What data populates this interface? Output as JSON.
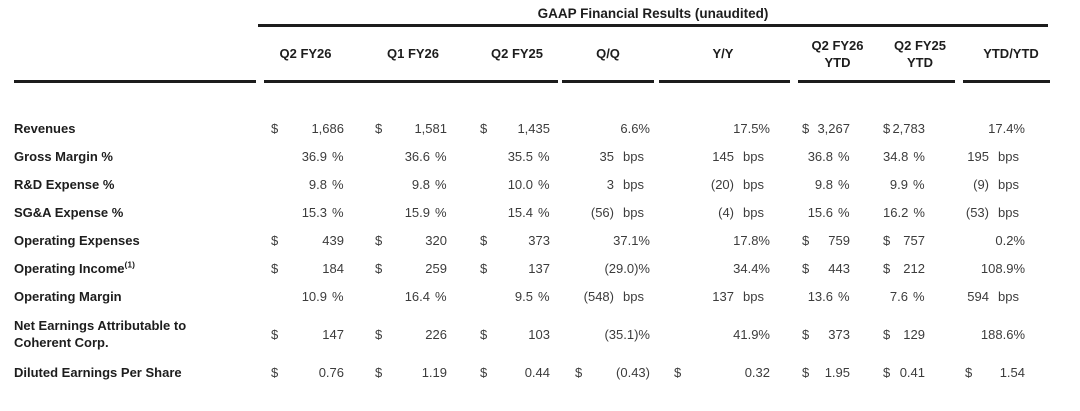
{
  "title": "GAAP Financial Results (unaudited)",
  "columns": [
    {
      "line1": "Q2 FY26",
      "line2": ""
    },
    {
      "line1": "Q1 FY26",
      "line2": ""
    },
    {
      "line1": "Q2 FY25",
      "line2": ""
    },
    {
      "line1": "Q/Q",
      "line2": ""
    },
    {
      "line1": "Y/Y",
      "line2": ""
    },
    {
      "line1": "Q2 FY26",
      "line2": "YTD"
    },
    {
      "line1": "Q2 FY25",
      "line2": "YTD"
    },
    {
      "line1": "YTD/YTD",
      "line2": ""
    }
  ],
  "rows": [
    {
      "label": "Revenues",
      "cells": [
        {
          "p": "$",
          "v": "1,686",
          "u": ""
        },
        {
          "p": "$",
          "v": "1,581",
          "u": ""
        },
        {
          "p": "$",
          "v": "1,435",
          "u": ""
        },
        {
          "p": "",
          "v": "6.6%",
          "u": ""
        },
        {
          "p": "",
          "v": "17.5%",
          "u": ""
        },
        {
          "p": "$",
          "v": "3,267",
          "u": ""
        },
        {
          "p": "$",
          "v": "2,783",
          "u": ""
        },
        {
          "p": "",
          "v": "17.4%",
          "u": ""
        }
      ]
    },
    {
      "label": "Gross Margin %",
      "cells": [
        {
          "p": "",
          "v": "36.9",
          "u": "%"
        },
        {
          "p": "",
          "v": "36.6",
          "u": "%"
        },
        {
          "p": "",
          "v": "35.5",
          "u": "%"
        },
        {
          "p": "",
          "v": "35",
          "u": "bps"
        },
        {
          "p": "",
          "v": "145",
          "u": "bps"
        },
        {
          "p": "",
          "v": "36.8",
          "u": "%"
        },
        {
          "p": "",
          "v": "34.8",
          "u": "%"
        },
        {
          "p": "",
          "v": "195",
          "u": "bps"
        }
      ]
    },
    {
      "label": "R&D Expense %",
      "cells": [
        {
          "p": "",
          "v": "9.8",
          "u": "%"
        },
        {
          "p": "",
          "v": "9.8",
          "u": "%"
        },
        {
          "p": "",
          "v": "10.0",
          "u": "%"
        },
        {
          "p": "",
          "v": "3",
          "u": "bps"
        },
        {
          "p": "",
          "v": "(20)",
          "u": "bps"
        },
        {
          "p": "",
          "v": "9.8",
          "u": "%"
        },
        {
          "p": "",
          "v": "9.9",
          "u": "%"
        },
        {
          "p": "",
          "v": "(9)",
          "u": "bps"
        }
      ]
    },
    {
      "label": "SG&A Expense %",
      "cells": [
        {
          "p": "",
          "v": "15.3",
          "u": "%"
        },
        {
          "p": "",
          "v": "15.9",
          "u": "%"
        },
        {
          "p": "",
          "v": "15.4",
          "u": "%"
        },
        {
          "p": "",
          "v": "(56)",
          "u": "bps"
        },
        {
          "p": "",
          "v": "(4)",
          "u": "bps"
        },
        {
          "p": "",
          "v": "15.6",
          "u": "%"
        },
        {
          "p": "",
          "v": "16.2",
          "u": "%"
        },
        {
          "p": "",
          "v": "(53)",
          "u": "bps"
        }
      ]
    },
    {
      "label": "Operating Expenses",
      "cells": [
        {
          "p": "$",
          "v": "439",
          "u": ""
        },
        {
          "p": "$",
          "v": "320",
          "u": ""
        },
        {
          "p": "$",
          "v": "373",
          "u": ""
        },
        {
          "p": "",
          "v": "37.1%",
          "u": ""
        },
        {
          "p": "",
          "v": "17.8%",
          "u": ""
        },
        {
          "p": "$",
          "v": "759",
          "u": ""
        },
        {
          "p": "$",
          "v": "757",
          "u": ""
        },
        {
          "p": "",
          "v": "0.2%",
          "u": ""
        }
      ]
    },
    {
      "label": "Operating Income",
      "label_sup": "(1)",
      "cells": [
        {
          "p": "$",
          "v": "184",
          "u": ""
        },
        {
          "p": "$",
          "v": "259",
          "u": ""
        },
        {
          "p": "$",
          "v": "137",
          "u": ""
        },
        {
          "p": "",
          "v": "(29.0)%",
          "u": ""
        },
        {
          "p": "",
          "v": "34.4%",
          "u": ""
        },
        {
          "p": "$",
          "v": "443",
          "u": ""
        },
        {
          "p": "$",
          "v": "212",
          "u": ""
        },
        {
          "p": "",
          "v": "108.9%",
          "u": ""
        }
      ]
    },
    {
      "label": "Operating Margin",
      "cells": [
        {
          "p": "",
          "v": "10.9",
          "u": "%"
        },
        {
          "p": "",
          "v": "16.4",
          "u": "%"
        },
        {
          "p": "",
          "v": "9.5",
          "u": "%"
        },
        {
          "p": "",
          "v": "(548)",
          "u": "bps"
        },
        {
          "p": "",
          "v": "137",
          "u": "bps"
        },
        {
          "p": "",
          "v": "13.6",
          "u": "%"
        },
        {
          "p": "",
          "v": "7.6",
          "u": "%"
        },
        {
          "p": "",
          "v": "594",
          "u": "bps"
        }
      ]
    },
    {
      "label": "Net Earnings Attributable to",
      "label2": "Coherent Corp.",
      "tall": true,
      "cells": [
        {
          "p": "$",
          "v": "147",
          "u": ""
        },
        {
          "p": "$",
          "v": "226",
          "u": ""
        },
        {
          "p": "$",
          "v": "103",
          "u": ""
        },
        {
          "p": "",
          "v": "(35.1)%",
          "u": ""
        },
        {
          "p": "",
          "v": "41.9%",
          "u": ""
        },
        {
          "p": "$",
          "v": "373",
          "u": ""
        },
        {
          "p": "$",
          "v": "129",
          "u": ""
        },
        {
          "p": "",
          "v": "188.6%",
          "u": ""
        }
      ]
    },
    {
      "label": "Diluted Earnings Per Share",
      "cells": [
        {
          "p": "$",
          "v": "0.76",
          "u": ""
        },
        {
          "p": "$",
          "v": "1.19",
          "u": ""
        },
        {
          "p": "$",
          "v": "0.44",
          "u": ""
        },
        {
          "p": "$",
          "v": "(0.43)",
          "u": ""
        },
        {
          "p": "$",
          "v": "0.32",
          "u": ""
        },
        {
          "p": "$",
          "v": "1.95",
          "u": ""
        },
        {
          "p": "$",
          "v": "0.41",
          "u": ""
        },
        {
          "p": "$",
          "v": "1.54",
          "u": ""
        }
      ]
    }
  ]
}
